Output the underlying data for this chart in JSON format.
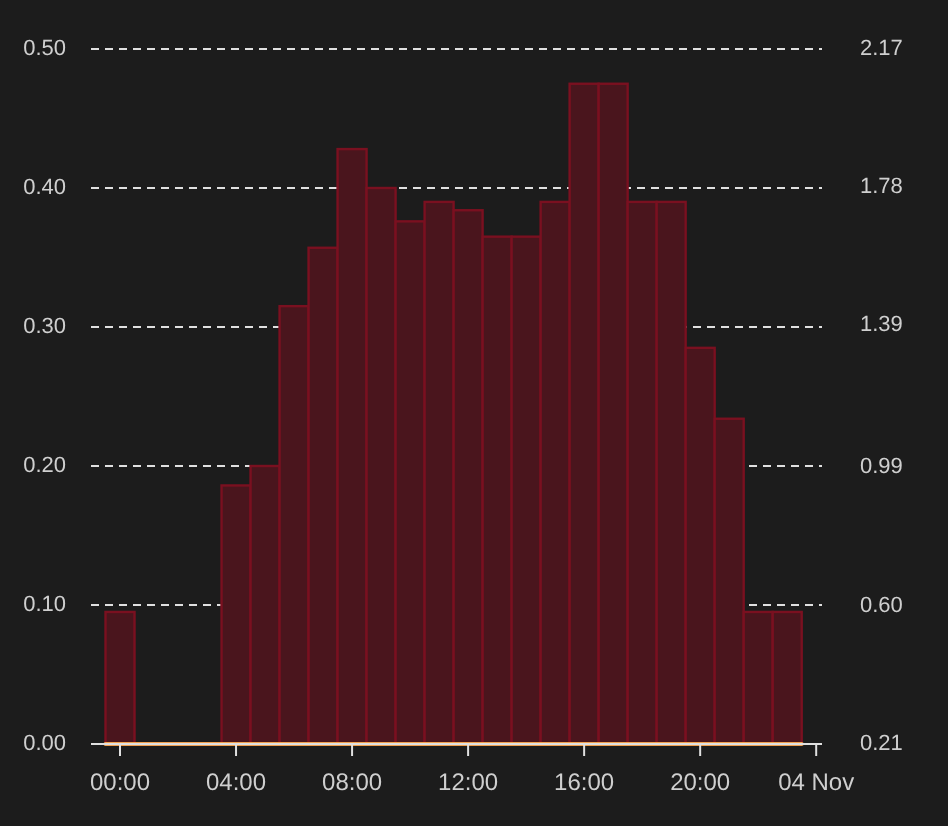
{
  "chart_data": {
    "type": "histogram",
    "bins": [
      -0.5,
      0.5,
      1.5,
      2.5,
      3.5,
      4.5,
      5.5,
      6.5,
      7.5,
      8.5,
      9.5,
      10.5,
      11.5,
      12.5,
      13.5,
      14.5,
      15.5,
      16.5,
      17.5,
      18.5,
      19.5,
      20.5,
      21.5,
      22.5,
      23.5
    ],
    "series": [
      {
        "color": "#7a1020",
        "values": [
          0.095,
          0,
          0,
          0,
          0.186,
          0.2,
          0.315,
          0.357,
          0.428,
          0.4,
          0.376,
          0.39,
          0.384,
          0.365,
          0.365,
          0.39,
          0.475,
          0.475,
          0.39,
          0.39,
          0.285,
          0.234,
          0.095,
          0.095
        ]
      },
      {
        "type": "line",
        "axis": "y2",
        "color": "#f0a050",
        "x": [
          -0.5,
          23.5
        ],
        "values": [
          0.21,
          0.21
        ]
      }
    ],
    "xlim": [
      -1,
      24.2
    ],
    "xticks": [
      {
        "value": 0,
        "label": "00:00"
      },
      {
        "value": 4,
        "label": "04:00"
      },
      {
        "value": 8,
        "label": "08:00"
      },
      {
        "value": 12,
        "label": "12:00"
      },
      {
        "value": 16,
        "label": "16:00"
      },
      {
        "value": 20,
        "label": "20:00"
      },
      {
        "value": 24,
        "label": "04 Nov"
      }
    ],
    "ylim": [
      0,
      0.5
    ],
    "yticks": [
      {
        "value": 0,
        "label": "0.00"
      },
      {
        "value": 0.1,
        "label": "0.10"
      },
      {
        "value": 0.2,
        "label": "0.20"
      },
      {
        "value": 0.3,
        "label": "0.30"
      },
      {
        "value": 0.4,
        "label": "0.40"
      },
      {
        "value": 0.5,
        "label": "0.50"
      }
    ],
    "y2lim": [
      0.21,
      2.17
    ],
    "y2ticks": [
      0.21,
      {
        "value": 0.6,
        "label": "0.60"
      },
      0.99,
      1.39,
      1.78,
      2.17
    ],
    "grid": "y",
    "line_style": "solid"
  }
}
